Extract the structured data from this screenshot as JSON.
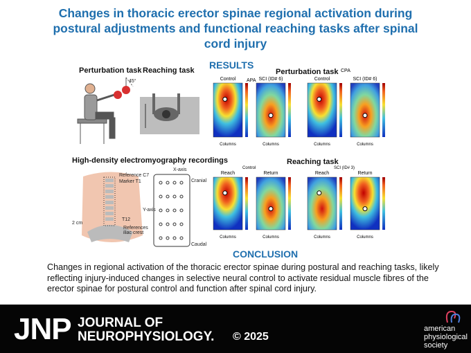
{
  "header": {
    "title": "Changes in thoracic erector spinae regional activation during postural adjustments and functional reaching tasks after spinal cord injury"
  },
  "illustration": {
    "perturbation_task": "Perturbation task",
    "reaching_task": "Reaching task",
    "angle": "45°",
    "hd_emg": "High-density electromyography recordings",
    "labels": [
      "Reference C7",
      "Marker T1",
      "T12",
      "2 cm",
      "References iliac crest",
      "X-axis",
      "Cranial",
      "Y-axis",
      "Caudal"
    ]
  },
  "results": {
    "heading": "RESULTS",
    "perturbation": {
      "title": "Perturbation task",
      "panels": [
        "Control",
        "SCI (ID# 6)",
        "Control",
        "SCI (ID# 6)"
      ],
      "phases": [
        "APA",
        "CPA"
      ]
    },
    "reaching": {
      "title": "Reaching task",
      "panels": [
        "Reach",
        "Return",
        "Reach",
        "Return"
      ],
      "groups": [
        "Control",
        "SCI (ID# 3)"
      ]
    },
    "axis": "Columns"
  },
  "conclusion": {
    "heading": "CONCLUSION",
    "text": "Changes in regional activation of the thoracic erector spinae during postural and reaching tasks, likely reflecting injury-induced changes in selective neural control to activate residual muscle fibres of the erector spinae for postural control and function after spinal cord injury."
  },
  "footer": {
    "logo": "JNP",
    "journal_line1": "JOURNAL OF",
    "journal_line2": "NEUROPHYSIOLOGY.",
    "copyright": "© 2025",
    "society": "american physiological society"
  }
}
